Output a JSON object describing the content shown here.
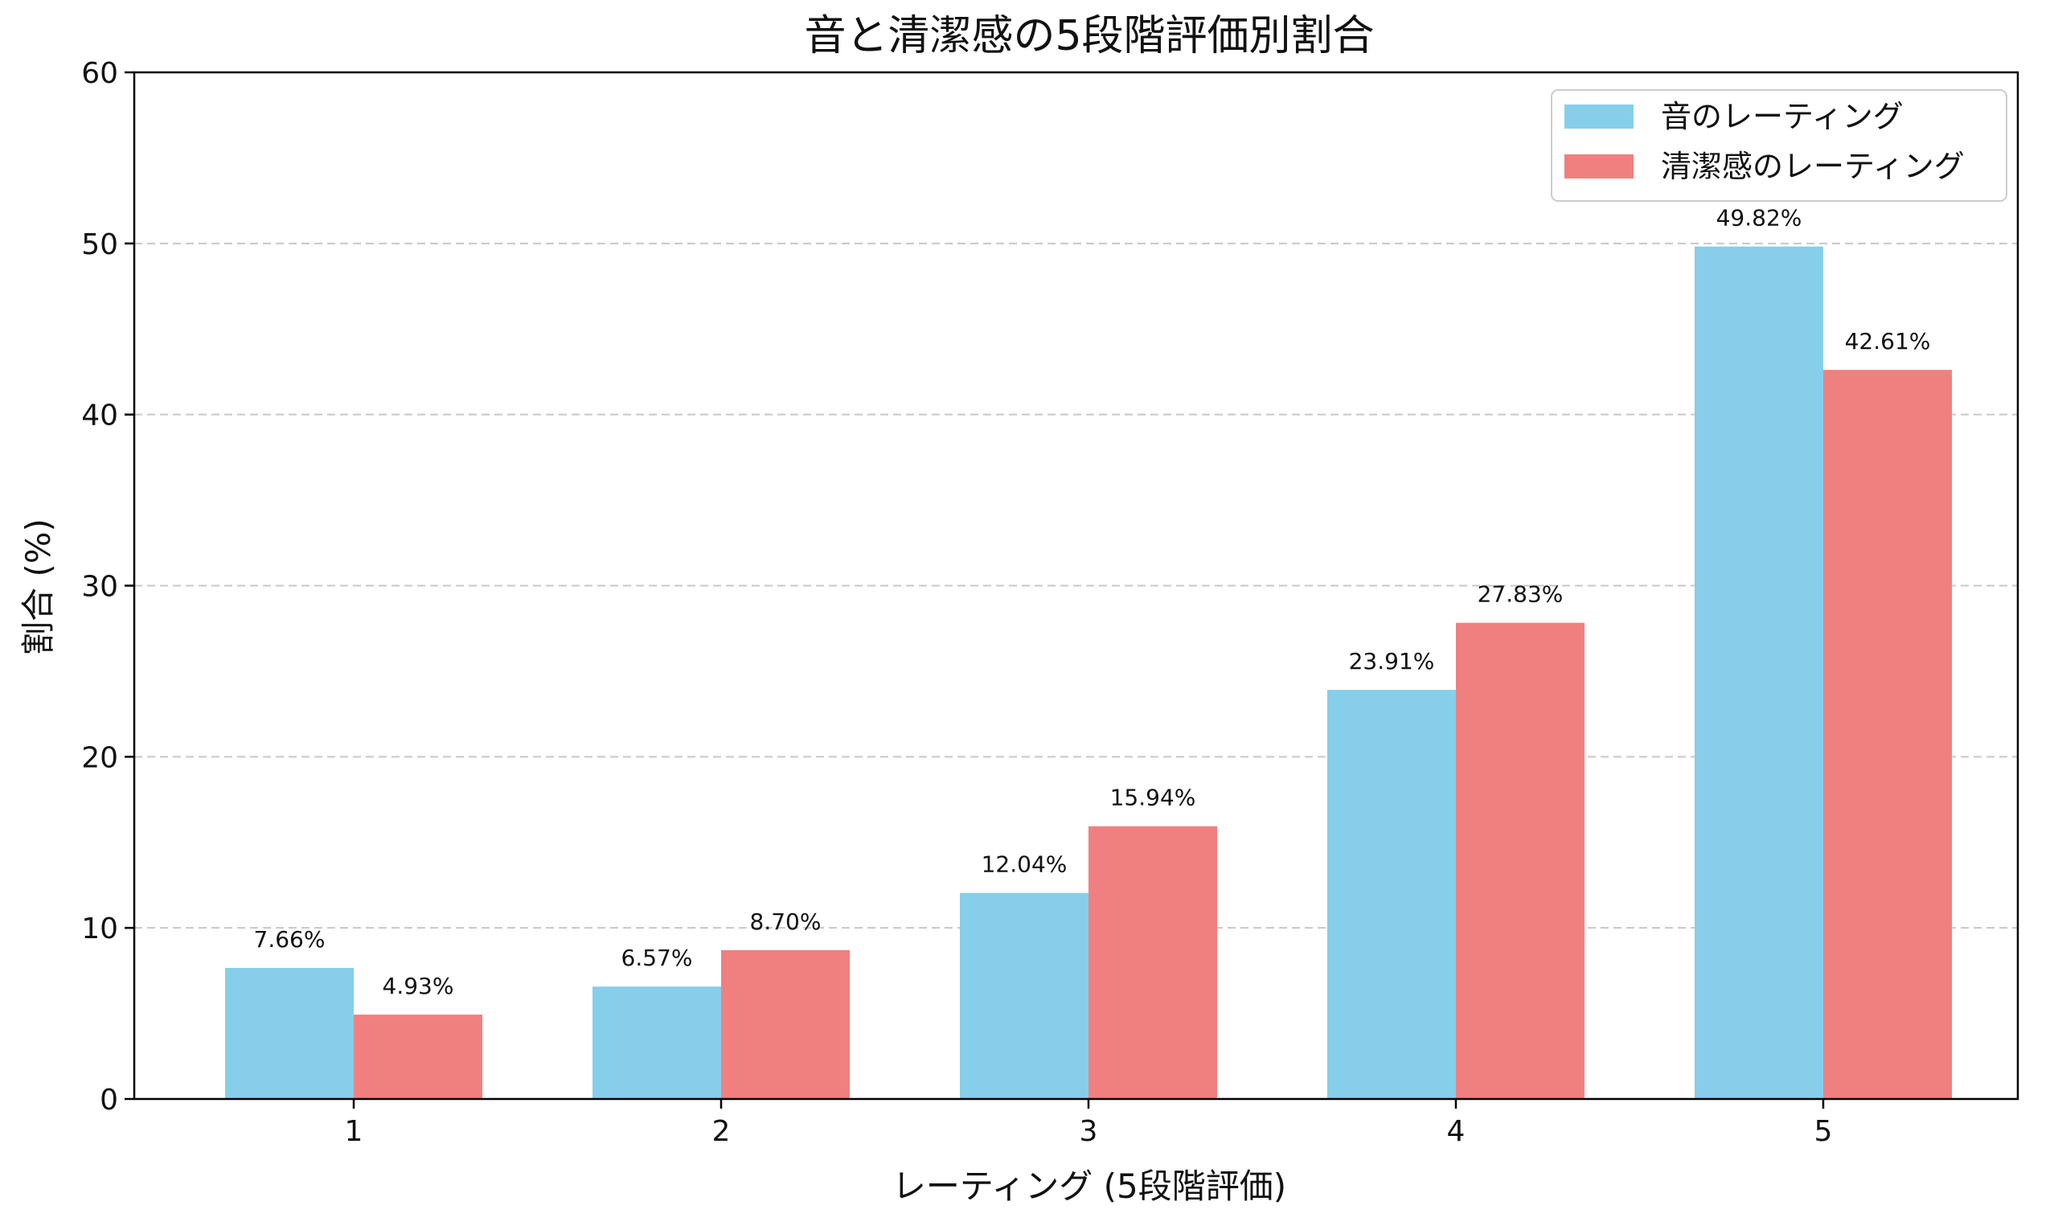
{
  "chart_data": {
    "type": "bar",
    "title": "音と清潔感の5段階評価別割合",
    "xlabel": "レーティング (5段階評価)",
    "ylabel": "割合 (%)",
    "categories": [
      "1",
      "2",
      "3",
      "4",
      "5"
    ],
    "ylim": [
      0,
      60
    ],
    "yticks": [
      0,
      10,
      20,
      30,
      40,
      50,
      60
    ],
    "grid": "horizontal dashed",
    "legend_position": "top-right",
    "series": [
      {
        "name": "音のレーティング",
        "color": "#87CEEB",
        "values": [
          7.66,
          6.57,
          12.04,
          23.91,
          49.82
        ],
        "labels": [
          "7.66%",
          "6.57%",
          "12.04%",
          "23.91%",
          "49.82%"
        ]
      },
      {
        "name": "清潔感のレーティング",
        "color": "#F08080",
        "values": [
          4.93,
          8.7,
          15.94,
          27.83,
          42.61
        ],
        "labels": [
          "4.93%",
          "8.70%",
          "15.94%",
          "27.83%",
          "42.61%"
        ]
      }
    ]
  }
}
